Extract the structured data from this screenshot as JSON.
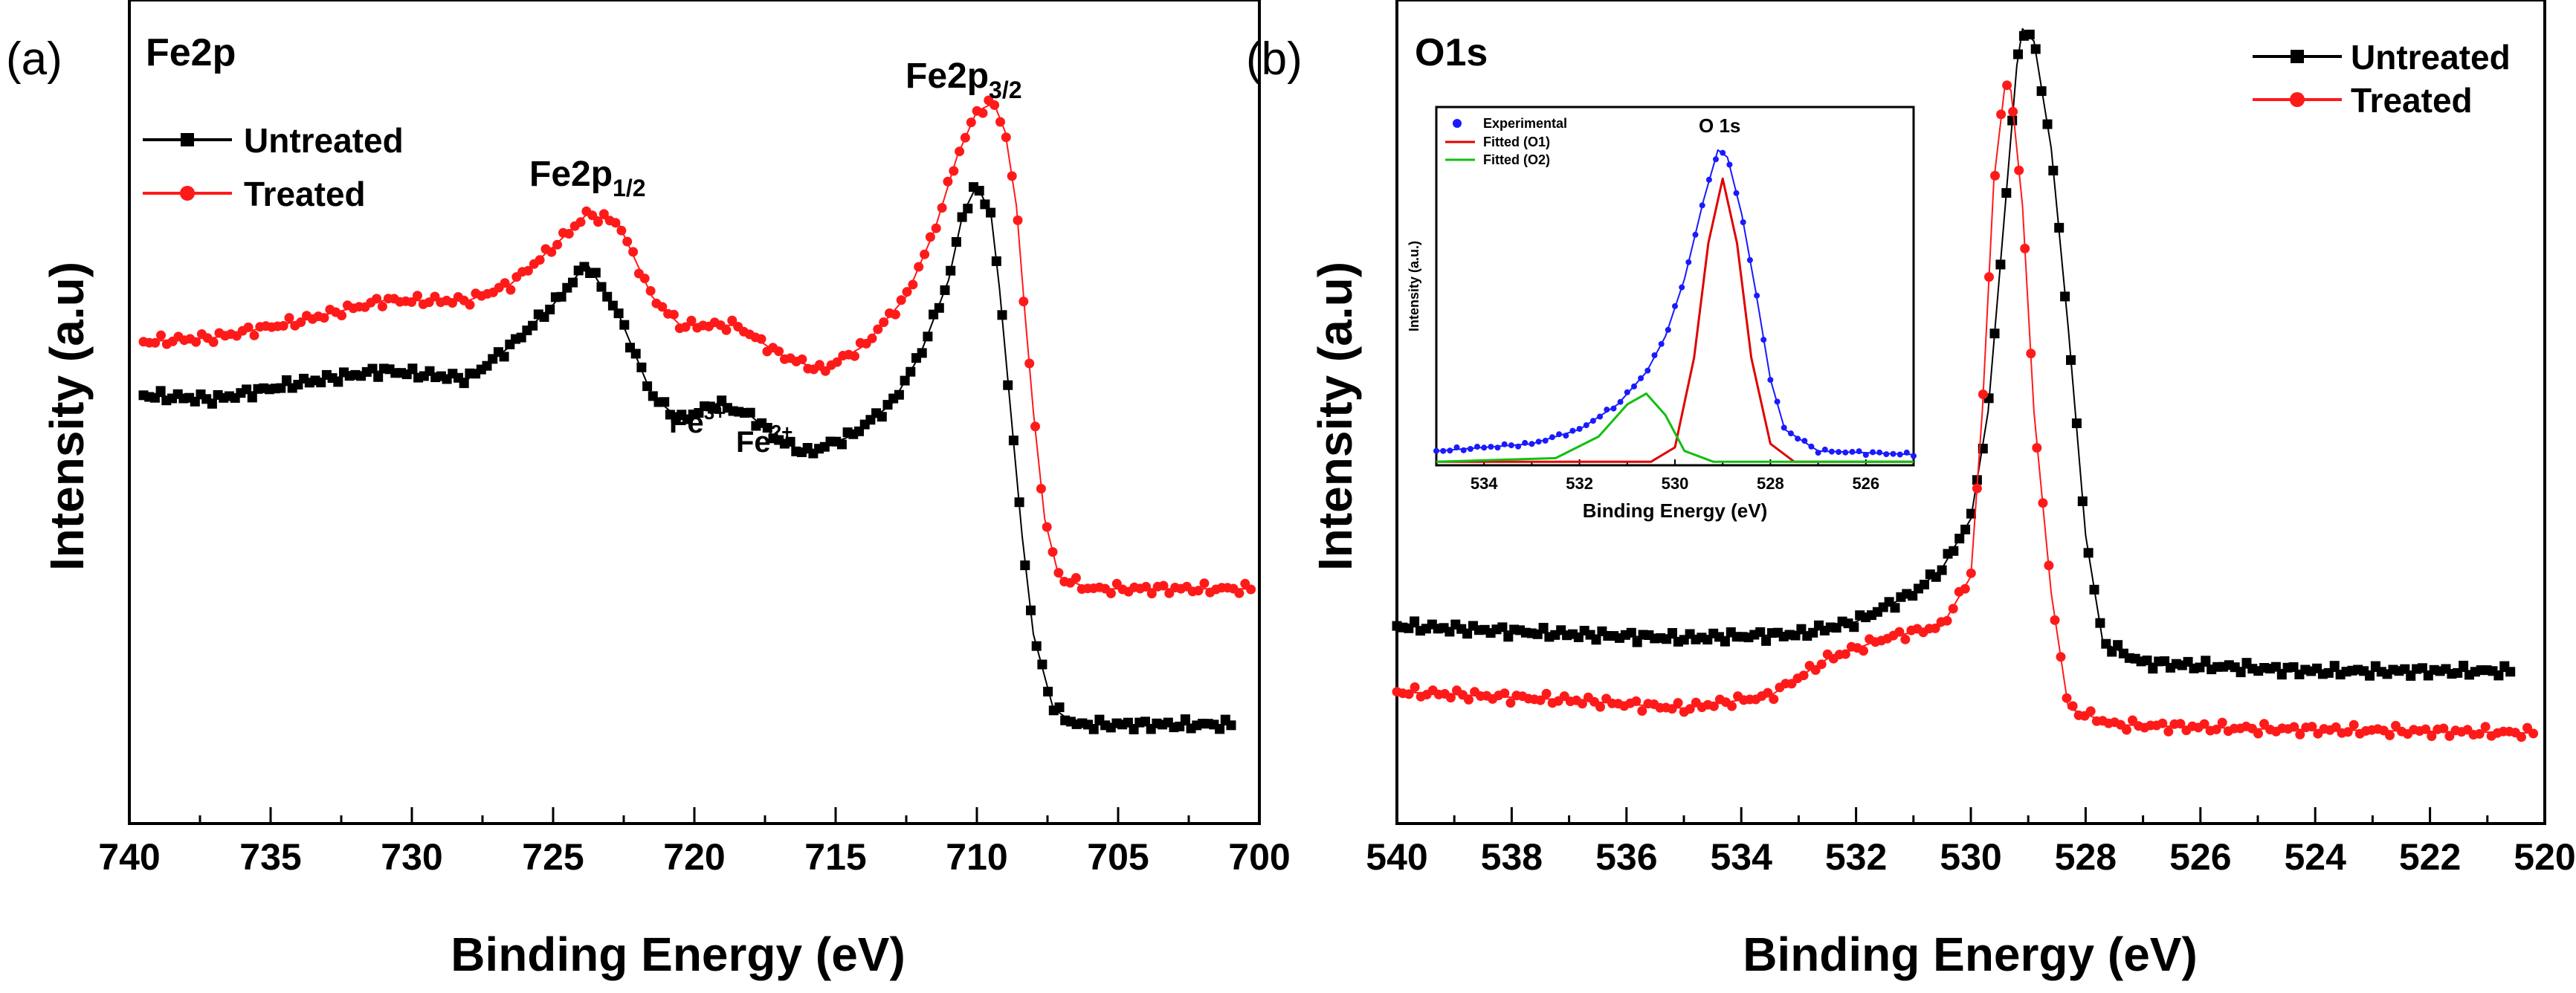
{
  "colors": {
    "untreated": "#000000",
    "treated": "#ff1a1a",
    "experimental": "#1a1aff",
    "fitted_o1": "#e00000",
    "fitted_o2": "#10c010"
  },
  "panels": {
    "a": {
      "panel_label": "(a)",
      "corner_label": "Fe2p",
      "ylabel": "Intensity (a.u)",
      "xlabel": "Binding Energy (eV)",
      "legend": {
        "untreated": "Untreated",
        "treated": "Treated"
      },
      "peak_labels": {
        "fe2p12_main": "Fe2p",
        "fe2p12_sub": "1/2",
        "fe2p32_main": "Fe2p",
        "fe2p32_sub": "3/2",
        "fe3_main": "Fe",
        "fe3_sup": "3+",
        "fe2_main": "Fe",
        "fe2_sup": "2+"
      }
    },
    "b": {
      "panel_label": "(b)",
      "corner_label": "O1s",
      "ylabel": "Intensity (a.u)",
      "xlabel": "Binding Energy (eV)",
      "legend": {
        "untreated": "Untreated",
        "treated": "Treated"
      },
      "inset": {
        "title": "O 1s",
        "xlabel": "Binding Energy (eV)",
        "ylabel": "Intensity (a.u.)",
        "legend": {
          "experimental": "Experimental",
          "fitted_o1": "Fitted (O1)",
          "fitted_o2": "Fitted (O2)"
        }
      }
    }
  },
  "chart_data": [
    {
      "id": "a",
      "type": "line",
      "title": "Fe2p",
      "xlabel": "Binding Energy (eV)",
      "ylabel": "Intensity (a.u)",
      "xlim": [
        740,
        700
      ],
      "ylim": [
        0,
        100
      ],
      "xticks": [
        740,
        735,
        730,
        725,
        720,
        715,
        710,
        705,
        700
      ],
      "legend_position": "top-left",
      "series": [
        {
          "name": "Untreated",
          "color": "#000000",
          "marker": "square",
          "points": [
            [
              739.5,
              52
            ],
            [
              737,
              51.5
            ],
            [
              734,
              53.5
            ],
            [
              731,
              55
            ],
            [
              728,
              54
            ],
            [
              726.5,
              58
            ],
            [
              725,
              63
            ],
            [
              723.8,
              68
            ],
            [
              722.7,
              62
            ],
            [
              721.5,
              52
            ],
            [
              720.5,
              49
            ],
            [
              719.2,
              51
            ],
            [
              718,
              49.5
            ],
            [
              717,
              46.5
            ],
            [
              716,
              45
            ],
            [
              714.5,
              47
            ],
            [
              713,
              51
            ],
            [
              712,
              57
            ],
            [
              711,
              66
            ],
            [
              710.5,
              74
            ],
            [
              710,
              77.5
            ],
            [
              709.5,
              74
            ],
            [
              709.2,
              65
            ],
            [
              708.8,
              50
            ],
            [
              708.4,
              35
            ],
            [
              708,
              23
            ],
            [
              707.3,
              14
            ],
            [
              706.5,
              12
            ],
            [
              704,
              12
            ],
            [
              701,
              12
            ]
          ]
        },
        {
          "name": "Treated",
          "color": "#ff1a1a",
          "marker": "circle",
          "points": [
            [
              739.5,
              58.5
            ],
            [
              737,
              59
            ],
            [
              734,
              61
            ],
            [
              731,
              63.5
            ],
            [
              728,
              63.5
            ],
            [
              726.5,
              65.5
            ],
            [
              725,
              70
            ],
            [
              723.8,
              74
            ],
            [
              722.7,
              73
            ],
            [
              721.5,
              64
            ],
            [
              720.5,
              60.5
            ],
            [
              718.5,
              60.5
            ],
            [
              717,
              57
            ],
            [
              715.5,
              55
            ],
            [
              714,
              58
            ],
            [
              712.5,
              64
            ],
            [
              711.5,
              72
            ],
            [
              710.7,
              81
            ],
            [
              710,
              86.5
            ],
            [
              709.4,
              87.5
            ],
            [
              709,
              84
            ],
            [
              708.6,
              75
            ],
            [
              708.3,
              62
            ],
            [
              708,
              50
            ],
            [
              707.6,
              37
            ],
            [
              707.1,
              30
            ],
            [
              706,
              28.5
            ],
            [
              703,
              28.5
            ],
            [
              700.3,
              28.5
            ]
          ]
        }
      ]
    },
    {
      "id": "b",
      "type": "line",
      "title": "O1s",
      "xlabel": "Binding Energy (eV)",
      "ylabel": "Intensity (a.u)",
      "xlim": [
        540,
        520
      ],
      "ylim": [
        0,
        100
      ],
      "xticks": [
        540,
        538,
        536,
        534,
        532,
        530,
        528,
        526,
        524,
        522,
        520
      ],
      "legend_position": "top-right",
      "series": [
        {
          "name": "Untreated",
          "color": "#000000",
          "marker": "square",
          "points": [
            [
              540,
              24
            ],
            [
              537,
              23
            ],
            [
              535,
              22.5
            ],
            [
              533,
              23
            ],
            [
              532,
              24.5
            ],
            [
              531,
              28
            ],
            [
              530.5,
              31
            ],
            [
              530,
              37
            ],
            [
              529.7,
              50
            ],
            [
              529.4,
              75
            ],
            [
              529.2,
              92
            ],
            [
              529.1,
              96.5
            ],
            [
              528.9,
              95
            ],
            [
              528.6,
              82
            ],
            [
              528.3,
              60
            ],
            [
              528,
              35
            ],
            [
              527.7,
              22
            ],
            [
              527,
              19.5
            ],
            [
              524,
              18.5
            ],
            [
              520.6,
              18.5
            ]
          ]
        },
        {
          "name": "Treated",
          "color": "#ff1a1a",
          "marker": "circle",
          "points": [
            [
              540,
              16
            ],
            [
              537,
              15
            ],
            [
              535,
              14
            ],
            [
              533.5,
              15.5
            ],
            [
              532.5,
              20
            ],
            [
              531.5,
              22.5
            ],
            [
              530.5,
              24
            ],
            [
              530,
              30
            ],
            [
              529.8,
              50
            ],
            [
              529.6,
              78
            ],
            [
              529.4,
              90
            ],
            [
              529.3,
              89
            ],
            [
              529.1,
              75
            ],
            [
              528.9,
              50
            ],
            [
              528.6,
              28
            ],
            [
              528.3,
              14
            ],
            [
              527.5,
              12
            ],
            [
              525,
              11.5
            ],
            [
              520.2,
              11
            ]
          ]
        }
      ]
    },
    {
      "id": "b-inset",
      "type": "line",
      "title": "O 1s",
      "xlabel": "Binding Energy (eV)",
      "ylabel": "Intensity (a.u.)",
      "xlim": [
        535,
        525
      ],
      "ylim": [
        0,
        100
      ],
      "xticks": [
        534,
        532,
        530,
        528,
        526
      ],
      "legend_position": "top-left",
      "series": [
        {
          "name": "Experimental",
          "color": "#1a1aff",
          "marker": "circle",
          "points": [
            [
              535,
              4
            ],
            [
              533,
              6
            ],
            [
              532,
              10
            ],
            [
              531.2,
              17
            ],
            [
              530.6,
              26
            ],
            [
              530.2,
              36
            ],
            [
              529.8,
              52
            ],
            [
              529.4,
              74
            ],
            [
              529.1,
              88
            ],
            [
              528.9,
              86
            ],
            [
              528.6,
              70
            ],
            [
              528.3,
              48
            ],
            [
              528,
              24
            ],
            [
              527.7,
              10
            ],
            [
              527,
              4
            ],
            [
              525,
              3
            ]
          ]
        },
        {
          "name": "Fitted (O1)",
          "color": "#e00000",
          "marker": "none",
          "points": [
            [
              535,
              1
            ],
            [
              530.5,
              1
            ],
            [
              530,
              5
            ],
            [
              529.6,
              30
            ],
            [
              529.3,
              62
            ],
            [
              529,
              80
            ],
            [
              528.7,
              62
            ],
            [
              528.4,
              30
            ],
            [
              528,
              6
            ],
            [
              527.5,
              1
            ],
            [
              525,
              1
            ]
          ]
        },
        {
          "name": "Fitted (O2)",
          "color": "#10c010",
          "marker": "none",
          "points": [
            [
              535,
              1
            ],
            [
              532.5,
              2
            ],
            [
              531.6,
              8
            ],
            [
              531,
              17
            ],
            [
              530.6,
              20
            ],
            [
              530.2,
              14
            ],
            [
              529.8,
              4
            ],
            [
              529.2,
              1
            ],
            [
              525,
              1
            ]
          ]
        }
      ]
    }
  ]
}
